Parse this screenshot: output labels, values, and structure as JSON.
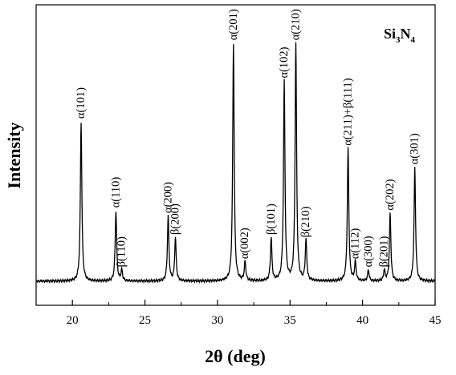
{
  "chart_data": {
    "type": "line",
    "title": "",
    "annotation": {
      "base": "Si",
      "sub1": "3",
      "mid": "N",
      "sub2": "4"
    },
    "xlabel": "2θ (deg)",
    "ylabel": "Intensity",
    "xlim": [
      17.5,
      45
    ],
    "x_ticks": [
      20,
      25,
      30,
      35,
      40,
      45
    ],
    "y_ticks_shown": false,
    "grid": false,
    "legend": "none",
    "line_color": "#000000",
    "baseline": 0.03,
    "series": [
      {
        "values_description_peaks": true,
        "peaks": [
          {
            "x": 20.6,
            "y": 0.62,
            "label": "α(101)"
          },
          {
            "x": 23.0,
            "y": 0.29,
            "label": "α(110)"
          },
          {
            "x": 23.4,
            "y": 0.07,
            "label": "β(110)"
          },
          {
            "x": 26.6,
            "y": 0.27,
            "label": "α(200)"
          },
          {
            "x": 27.1,
            "y": 0.19,
            "label": "β(200)"
          },
          {
            "x": 31.1,
            "y": 0.91,
            "label": "α(201)"
          },
          {
            "x": 31.9,
            "y": 0.1,
            "label": "α(002)"
          },
          {
            "x": 33.7,
            "y": 0.19,
            "label": "β(101)"
          },
          {
            "x": 34.6,
            "y": 0.77,
            "label": "α(102)"
          },
          {
            "x": 35.4,
            "y": 0.91,
            "label": "α(210)"
          },
          {
            "x": 36.1,
            "y": 0.18,
            "label": "β(210)"
          },
          {
            "x": 39.0,
            "y": 0.52,
            "label": "α(211)+β(111)"
          },
          {
            "x": 39.5,
            "y": 0.1,
            "label": "α(112)"
          },
          {
            "x": 40.4,
            "y": 0.07,
            "label": "α(300)"
          },
          {
            "x": 41.5,
            "y": 0.07,
            "label": "β(201)"
          },
          {
            "x": 41.9,
            "y": 0.28,
            "label": "α(202)"
          },
          {
            "x": 43.6,
            "y": 0.45,
            "label": "α(301)"
          }
        ]
      }
    ]
  }
}
